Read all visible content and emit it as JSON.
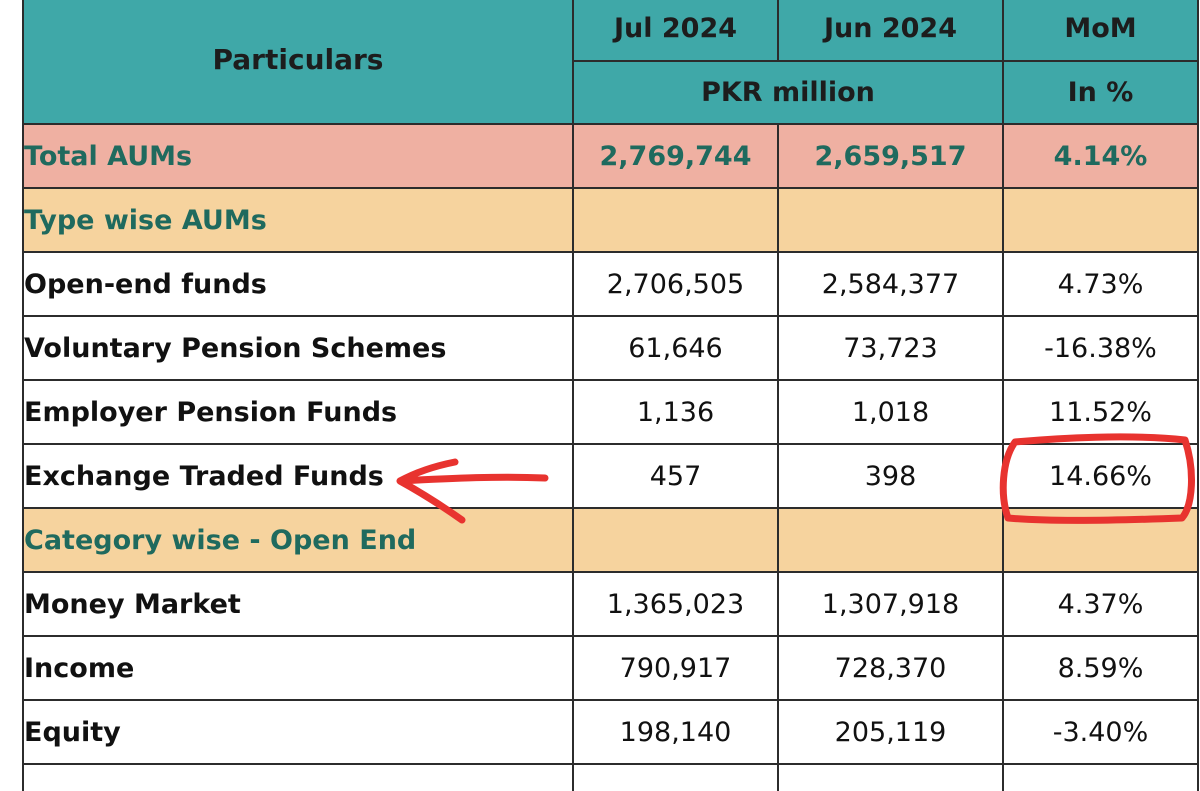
{
  "header": {
    "particulars": "Particulars",
    "col_jul": "Jul 2024",
    "col_jun": "Jun 2024",
    "col_mom": "MoM",
    "unit_pkr": "PKR million",
    "unit_pct": "In %"
  },
  "total": {
    "label": "Total AUMs",
    "jul": "2,769,744",
    "jun": "2,659,517",
    "mom": "4.14%"
  },
  "sections": {
    "type_wise": "Type wise AUMs",
    "category_wise": "Category wise - Open End"
  },
  "type_rows": [
    {
      "label": "Open-end funds",
      "jul": "2,706,505",
      "jun": "2,584,377",
      "mom": "4.73%"
    },
    {
      "label": "Voluntary Pension Schemes",
      "jul": "61,646",
      "jun": "73,723",
      "mom": "-16.38%"
    },
    {
      "label": "Employer Pension Funds",
      "jul": "1,136",
      "jun": "1,018",
      "mom": "11.52%"
    },
    {
      "label": "Exchange Traded Funds",
      "jul": "457",
      "jun": "398",
      "mom": "14.66%"
    }
  ],
  "category_rows": [
    {
      "label": "Money Market",
      "jul": "1,365,023",
      "jun": "1,307,918",
      "mom": "4.37%"
    },
    {
      "label": "Income",
      "jul": "790,917",
      "jun": "728,370",
      "mom": "8.59%"
    },
    {
      "label": "Equity",
      "jul": "198,140",
      "jun": "205,119",
      "mom": "-3.40%"
    }
  ],
  "colors": {
    "header_bg": "#3fa8a8",
    "total_bg": "#efb0a2",
    "section_bg": "#f6d39e",
    "section_text": "#1f6a5e",
    "annotation": "#e8332f"
  }
}
